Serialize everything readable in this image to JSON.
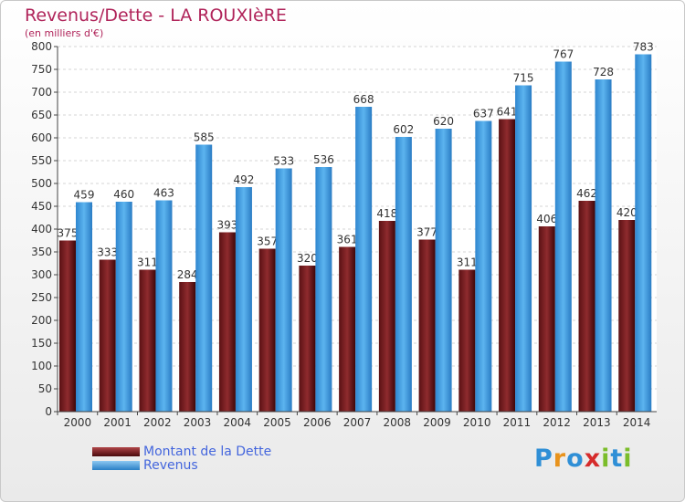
{
  "title": "Revenus/Dette - LA ROUXIèRE",
  "subtitle": "(en milliers d'€)",
  "logo": {
    "letters": [
      {
        "ch": "P",
        "color": "#2f8fd6"
      },
      {
        "ch": "r",
        "color": "#e8931d"
      },
      {
        "ch": "o",
        "color": "#2f8fd6"
      },
      {
        "ch": "x",
        "color": "#d62b2b"
      },
      {
        "ch": "i",
        "color": "#7bbd2a"
      },
      {
        "ch": "t",
        "color": "#2f8fd6"
      },
      {
        "ch": "i",
        "color": "#7bbd2a"
      }
    ]
  },
  "legend": [
    {
      "label": "Montant de la Dette",
      "color": "#7a1f22"
    },
    {
      "label": "Revenus",
      "color": "#3a9ae0"
    }
  ],
  "chart_data": {
    "type": "bar",
    "categories": [
      "2000",
      "2001",
      "2002",
      "2003",
      "2004",
      "2005",
      "2006",
      "2007",
      "2008",
      "2009",
      "2010",
      "2011",
      "2012",
      "2013",
      "2014"
    ],
    "series": [
      {
        "name": "Montant de la Dette",
        "color": "#7a1f22",
        "values": [
          375,
          333,
          311,
          284,
          393,
          357,
          320,
          361,
          418,
          377,
          311,
          641,
          406,
          462,
          420
        ]
      },
      {
        "name": "Revenus",
        "color": "#3a9ae0",
        "values": [
          459,
          460,
          463,
          585,
          492,
          533,
          536,
          668,
          602,
          620,
          637,
          715,
          767,
          728,
          783
        ]
      }
    ],
    "ylim": [
      0,
      800
    ],
    "ytick_step": 50,
    "grid": true,
    "legend_position": "bottom-left"
  }
}
